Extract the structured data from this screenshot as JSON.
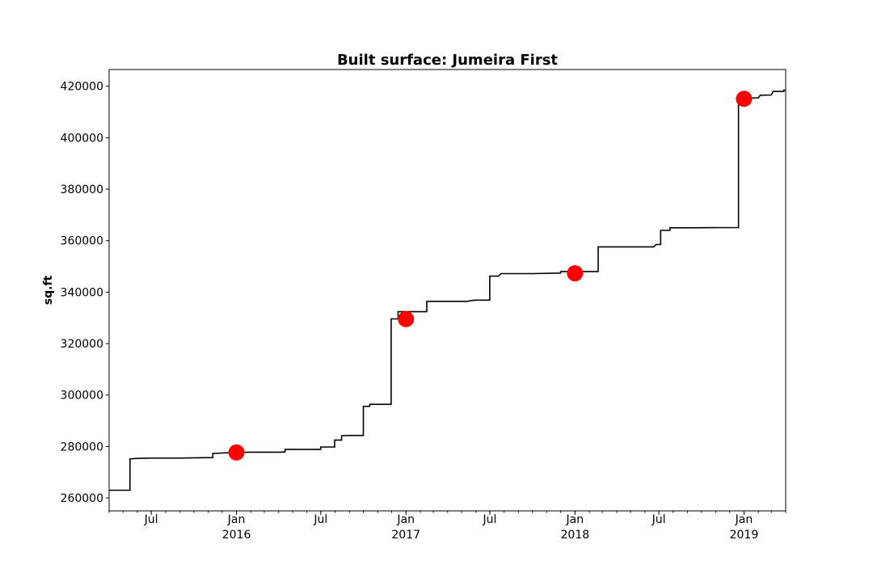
{
  "chart_data": {
    "type": "line",
    "title": "Built surface: Jumeira First",
    "xlabel": "",
    "ylabel": "sq.ft",
    "x_range": [
      "2015-04-01",
      "2019-04-01"
    ],
    "ylim": [
      255000,
      426500
    ],
    "y_ticks": [
      260000,
      280000,
      300000,
      320000,
      340000,
      360000,
      380000,
      400000,
      420000
    ],
    "x_ticks": [
      {
        "date": "2015-07-01",
        "label": "Jul",
        "year": ""
      },
      {
        "date": "2016-01-01",
        "label": "Jan",
        "year": "2016"
      },
      {
        "date": "2016-07-01",
        "label": "Jul",
        "year": ""
      },
      {
        "date": "2017-01-01",
        "label": "Jan",
        "year": "2017"
      },
      {
        "date": "2017-07-01",
        "label": "Jul",
        "year": ""
      },
      {
        "date": "2018-01-01",
        "label": "Jan",
        "year": "2018"
      },
      {
        "date": "2018-07-01",
        "label": "Jul",
        "year": ""
      },
      {
        "date": "2019-01-01",
        "label": "Jan",
        "year": "2019"
      }
    ],
    "grid": false,
    "legend": "none",
    "series": [
      {
        "style": "step",
        "color": "#000000",
        "points": [
          [
            "2015-04-01",
            263000
          ],
          [
            "2015-05-16",
            263000
          ],
          [
            "2015-05-16",
            275200
          ],
          [
            "2015-06-01",
            275400
          ],
          [
            "2015-07-01",
            275500
          ],
          [
            "2015-09-01",
            275500
          ],
          [
            "2015-10-01",
            275600
          ],
          [
            "2015-11-11",
            275700
          ],
          [
            "2015-11-11",
            277300
          ],
          [
            "2015-12-01",
            277500
          ],
          [
            "2016-01-01",
            277700
          ],
          [
            "2016-02-01",
            277800
          ],
          [
            "2016-04-01",
            277800
          ],
          [
            "2016-04-15",
            277900
          ],
          [
            "2016-04-15",
            278900
          ],
          [
            "2016-07-01",
            278900
          ],
          [
            "2016-07-01",
            279800
          ],
          [
            "2016-07-31",
            279800
          ],
          [
            "2016-07-31",
            282500
          ],
          [
            "2016-08-15",
            282500
          ],
          [
            "2016-08-15",
            284200
          ],
          [
            "2016-09-01",
            284300
          ],
          [
            "2016-10-01",
            284300
          ],
          [
            "2016-10-01",
            295600
          ],
          [
            "2016-10-15",
            295600
          ],
          [
            "2016-10-15",
            296400
          ],
          [
            "2016-11-30",
            296400
          ],
          [
            "2016-11-30",
            329600
          ],
          [
            "2016-12-15",
            329600
          ],
          [
            "2016-12-15",
            332400
          ],
          [
            "2017-02-15",
            332400
          ],
          [
            "2017-02-15",
            336400
          ],
          [
            "2017-05-15",
            336400
          ],
          [
            "2017-05-20",
            336700
          ],
          [
            "2017-06-01",
            336900
          ],
          [
            "2017-07-01",
            336900
          ],
          [
            "2017-07-01",
            346200
          ],
          [
            "2017-07-20",
            346200
          ],
          [
            "2017-07-25",
            347200
          ],
          [
            "2017-10-01",
            347200
          ],
          [
            "2017-12-01",
            347400
          ],
          [
            "2017-12-01",
            348000
          ],
          [
            "2018-02-20",
            348000
          ],
          [
            "2018-02-20",
            357600
          ],
          [
            "2018-06-20",
            357600
          ],
          [
            "2018-06-25",
            358500
          ],
          [
            "2018-07-05",
            358500
          ],
          [
            "2018-07-05",
            364000
          ],
          [
            "2018-07-25",
            364000
          ],
          [
            "2018-07-25",
            365000
          ],
          [
            "2018-09-01",
            365000
          ],
          [
            "2018-12-20",
            365100
          ],
          [
            "2018-12-20",
            415300
          ],
          [
            "2019-01-01",
            415300
          ],
          [
            "2019-02-01",
            415500
          ],
          [
            "2019-02-05",
            416500
          ],
          [
            "2019-03-01",
            416600
          ],
          [
            "2019-03-05",
            418000
          ],
          [
            "2019-03-28",
            418000
          ],
          [
            "2019-03-28",
            418500
          ],
          [
            "2019-04-01",
            418500
          ]
        ]
      },
      {
        "style": "markers",
        "color": "#ff0000",
        "points": [
          [
            "2016-01-01",
            277700
          ],
          [
            "2017-01-01",
            329500
          ],
          [
            "2018-01-01",
            347300
          ],
          [
            "2019-01-01",
            415100
          ]
        ]
      }
    ]
  }
}
